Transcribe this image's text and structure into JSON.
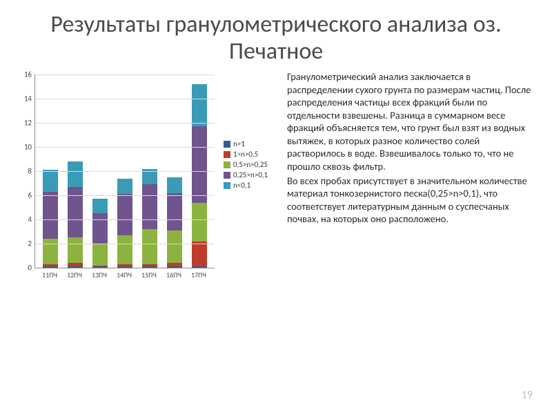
{
  "title": "Результаты гранулометрического анализа оз. Печатное",
  "page_number": "19",
  "paragraphs": [
    "Гранулометрический анализ заключается в распределении сухого грунта по размерам частиц. После распределения частицы всех фракций были по отдельности взвешены. Разница в суммарном весе фракций объясняется тем, что грунт был взят из водных вытяжек, в которых разное количество солей растворилось в воде. Взвешивалось только то, что не прошло сквозь фильтр.",
    "Во всех пробах присутствует в значительном количестве материал тонкозернистого песка(0,25>n>0,1), что соответствует литературным данным о суспесчаных почвах, на которых оно расположено."
  ],
  "chart": {
    "type": "stacked-bar",
    "ymax": 16,
    "ytick_step": 2,
    "background_color": "#ffffff",
    "grid_color": "#d9d9d9",
    "axis_color": "#888888",
    "tick_fontsize": 11,
    "categories": [
      "11ПЧ",
      "12ПЧ",
      "13ПЧ",
      "14ПЧ",
      "15ПЧ",
      "16ПЧ",
      "17ПЧ"
    ],
    "series": [
      {
        "name": "n>1",
        "color": "#385d8a"
      },
      {
        "name": "1>n>0,5",
        "color": "#bf3b2c"
      },
      {
        "name": "0,5>n>0,25",
        "color": "#8cb33f"
      },
      {
        "name": "0,25>n>0,1",
        "color": "#6f548e"
      },
      {
        "name": "n<0,1",
        "color": "#3a9bb7"
      }
    ],
    "data": [
      [
        0.1,
        0.2,
        2.1,
        3.9,
        1.8
      ],
      [
        0.1,
        0.3,
        2.1,
        4.2,
        2.1
      ],
      [
        0.1,
        0.1,
        1.8,
        2.5,
        1.2
      ],
      [
        0.1,
        0.2,
        2.4,
        3.4,
        1.3
      ],
      [
        0.1,
        0.2,
        2.9,
        3.7,
        1.3
      ],
      [
        0.1,
        0.3,
        2.7,
        3.1,
        1.3
      ],
      [
        0.1,
        2.1,
        3.2,
        6.3,
        3.5
      ]
    ]
  }
}
